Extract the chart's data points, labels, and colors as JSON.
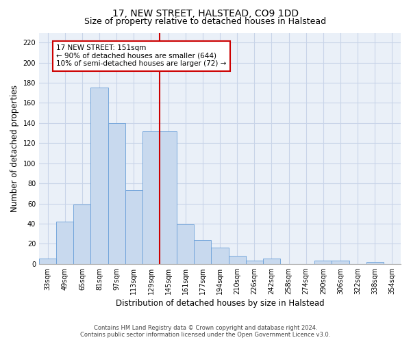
{
  "title": "17, NEW STREET, HALSTEAD, CO9 1DD",
  "subtitle": "Size of property relative to detached houses in Halstead",
  "xlabel": "Distribution of detached houses by size in Halstead",
  "ylabel": "Number of detached properties",
  "categories": [
    "33sqm",
    "49sqm",
    "65sqm",
    "81sqm",
    "97sqm",
    "113sqm",
    "129sqm",
    "145sqm",
    "161sqm",
    "177sqm",
    "194sqm",
    "210sqm",
    "226sqm",
    "242sqm",
    "258sqm",
    "274sqm",
    "290sqm",
    "306sqm",
    "322sqm",
    "338sqm",
    "354sqm"
  ],
  "values": [
    5,
    42,
    59,
    175,
    140,
    73,
    132,
    132,
    39,
    24,
    16,
    8,
    3,
    5,
    0,
    0,
    3,
    3,
    0,
    2,
    0
  ],
  "bar_color": "#c8d9ee",
  "bar_edge_color": "#6a9fd8",
  "grid_color": "#c8d4e8",
  "bg_color": "#eaf0f8",
  "annotation_line_index": 7,
  "annotation_text_line1": "17 NEW STREET: 151sqm",
  "annotation_text_line2": "← 90% of detached houses are smaller (644)",
  "annotation_text_line3": "10% of semi-detached houses are larger (72) →",
  "annotation_box_color": "#cc0000",
  "ylim": [
    0,
    230
  ],
  "yticks": [
    0,
    20,
    40,
    60,
    80,
    100,
    120,
    140,
    160,
    180,
    200,
    220
  ],
  "footnote1": "Contains HM Land Registry data © Crown copyright and database right 2024.",
  "footnote2": "Contains public sector information licensed under the Open Government Licence v3.0.",
  "title_fontsize": 10,
  "subtitle_fontsize": 9,
  "tick_fontsize": 7,
  "ylabel_fontsize": 8.5,
  "xlabel_fontsize": 8.5,
  "annotation_fontsize": 7.5
}
